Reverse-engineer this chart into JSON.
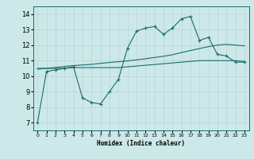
{
  "xlabel": "Humidex (Indice chaleur)",
  "bg_color": "#cce8e8",
  "grid_color": "#b8d4d4",
  "line_color": "#1a6b6b",
  "x_data": [
    0,
    1,
    2,
    3,
    4,
    5,
    6,
    7,
    8,
    9,
    10,
    11,
    12,
    13,
    14,
    15,
    16,
    17,
    18,
    19,
    20,
    21,
    22,
    23
  ],
  "y_main": [
    7.0,
    10.3,
    10.4,
    10.5,
    10.6,
    8.6,
    8.3,
    8.2,
    9.0,
    9.8,
    11.8,
    12.9,
    13.1,
    13.2,
    12.7,
    13.1,
    13.7,
    13.85,
    12.3,
    12.5,
    11.4,
    11.3,
    10.9,
    10.9
  ],
  "y_avg": [
    10.5,
    10.5,
    10.5,
    10.5,
    10.55,
    10.55,
    10.55,
    10.55,
    10.55,
    10.55,
    10.6,
    10.65,
    10.7,
    10.75,
    10.8,
    10.85,
    10.9,
    10.95,
    11.0,
    11.0,
    11.0,
    11.0,
    11.0,
    10.95
  ],
  "y_trend": [
    10.45,
    10.5,
    10.56,
    10.62,
    10.68,
    10.72,
    10.76,
    10.82,
    10.88,
    10.93,
    10.98,
    11.05,
    11.12,
    11.2,
    11.28,
    11.38,
    11.52,
    11.65,
    11.78,
    11.9,
    12.0,
    12.05,
    12.0,
    11.95
  ],
  "ylim": [
    6.5,
    14.5
  ],
  "yticks": [
    7,
    8,
    9,
    10,
    11,
    12,
    13,
    14
  ],
  "xlim": [
    -0.5,
    23.5
  ],
  "xticks": [
    0,
    1,
    2,
    3,
    4,
    5,
    6,
    7,
    8,
    9,
    10,
    11,
    12,
    13,
    14,
    15,
    16,
    17,
    18,
    19,
    20,
    21,
    22,
    23
  ]
}
